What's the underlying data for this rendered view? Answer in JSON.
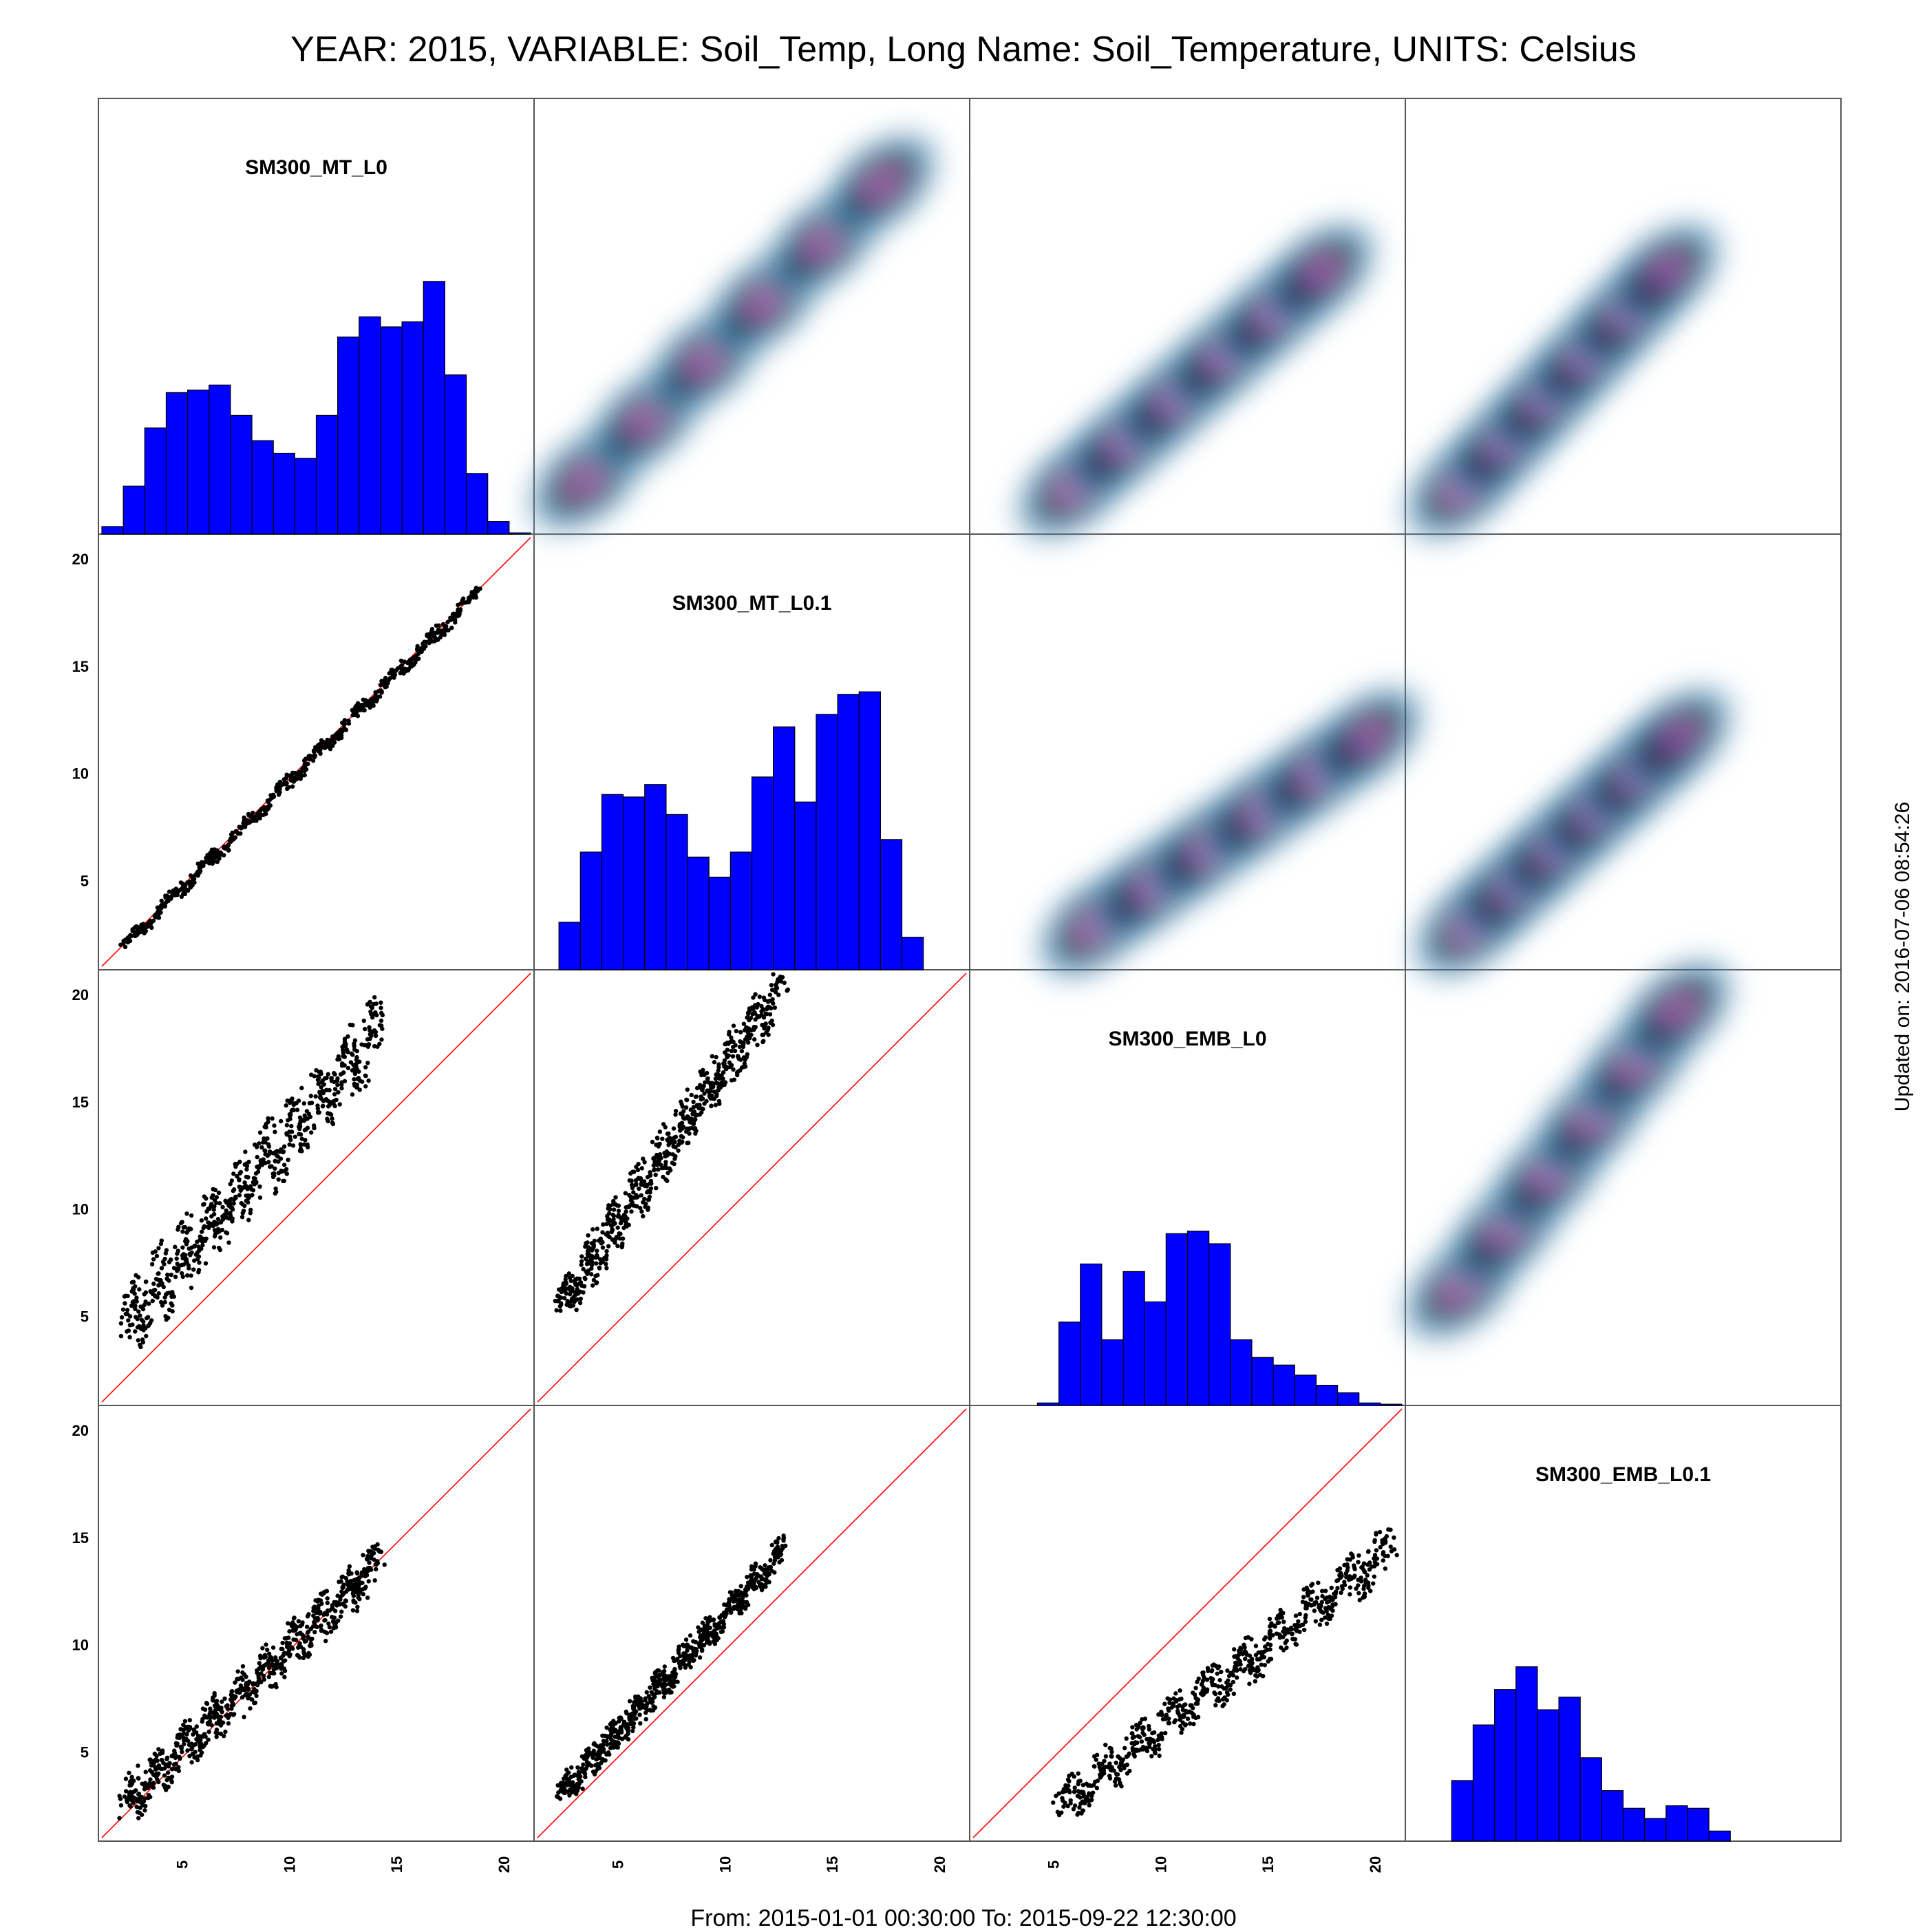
{
  "title": "YEAR: 2015, VARIABLE: Soil_Temp, Long Name: Soil_Temperature, UNITS: Celsius",
  "footer": "From: 2015-01-01 00:30:00 To: 2015-09-22 12:30:00",
  "updated": "Updated on: 2016-07-06 08:54:26",
  "colors": {
    "hist_fill": "#0000ff",
    "points": "#000000",
    "diagonal": "#ff0000",
    "density_low": "#ffffff",
    "density_mid": "#2f86b8",
    "density_high": "#0b2b45",
    "density_peak": "#9a3aa5",
    "frame": "#555555"
  },
  "chart_data": {
    "type": "scatter",
    "variables": [
      "SM300_MT_L0",
      "SM300_MT_L0.1",
      "SM300_EMB_L0",
      "SM300_EMB_L0.1"
    ],
    "axis_range": [
      1,
      21
    ],
    "ticks": [
      5,
      10,
      15,
      20
    ],
    "diagonal_line": "y = x",
    "histograms": [
      {
        "variable": "SM300_MT_L0",
        "bins_x": [
          1,
          21
        ],
        "heights": [
          0.03,
          0.19,
          0.42,
          0.56,
          0.57,
          0.59,
          0.47,
          0.37,
          0.32,
          0.3,
          0.47,
          0.78,
          0.86,
          0.82,
          0.84,
          1.0,
          0.63,
          0.24,
          0.05,
          0.005
        ]
      },
      {
        "variable": "SM300_MT_L0.1",
        "bins_x": [
          2,
          19
        ],
        "heights": [
          0.19,
          0.47,
          0.7,
          0.69,
          0.74,
          0.62,
          0.45,
          0.37,
          0.47,
          0.77,
          0.97,
          0.67,
          1.02,
          1.1,
          1.11,
          0.52,
          0.13
        ]
      },
      {
        "variable": "SM300_EMB_L0",
        "bins_x": [
          4,
          21
        ],
        "heights": [
          0.01,
          0.33,
          0.56,
          0.26,
          0.53,
          0.41,
          0.68,
          0.69,
          0.64,
          0.26,
          0.19,
          0.16,
          0.12,
          0.08,
          0.05,
          0.01,
          0.005
        ]
      },
      {
        "variable": "SM300_EMB_L0.1",
        "bins_x": [
          3,
          16
        ],
        "heights": [
          0.24,
          0.46,
          0.6,
          0.69,
          0.52,
          0.57,
          0.33,
          0.2,
          0.13,
          0.09,
          0.14,
          0.13,
          0.04
        ]
      }
    ],
    "scatter_panels": [
      {
        "x": "SM300_MT_L0",
        "y": "SM300_MT_L0.1",
        "x_range": [
          2,
          18.5
        ],
        "y_offset": -0.1,
        "slope": 1.0,
        "spread": 0.45
      },
      {
        "x": "SM300_MT_L0",
        "y": "SM300_EMB_L0",
        "x_range": [
          2,
          14
        ],
        "y_offset": 2.2,
        "slope": 1.15,
        "spread": 2.0
      },
      {
        "x": "SM300_MT_L0.1",
        "y": "SM300_EMB_L0",
        "x_range": [
          2,
          12.5
        ],
        "y_offset": 2.5,
        "slope": 1.45,
        "spread": 1.5
      },
      {
        "x": "SM300_MT_L0",
        "y": "SM300_EMB_L0.1",
        "x_range": [
          2,
          14
        ],
        "y_offset": 0.6,
        "slope": 0.95,
        "spread": 1.3
      },
      {
        "x": "SM300_MT_L0.1",
        "y": "SM300_EMB_L0.1",
        "x_range": [
          2,
          12.5
        ],
        "y_offset": 0.7,
        "slope": 1.1,
        "spread": 0.9
      },
      {
        "x": "SM300_EMB_L0",
        "y": "SM300_EMB_L0.1",
        "x_range": [
          5,
          20.5
        ],
        "y_offset": -1.5,
        "slope": 0.78,
        "spread": 1.3
      }
    ]
  }
}
